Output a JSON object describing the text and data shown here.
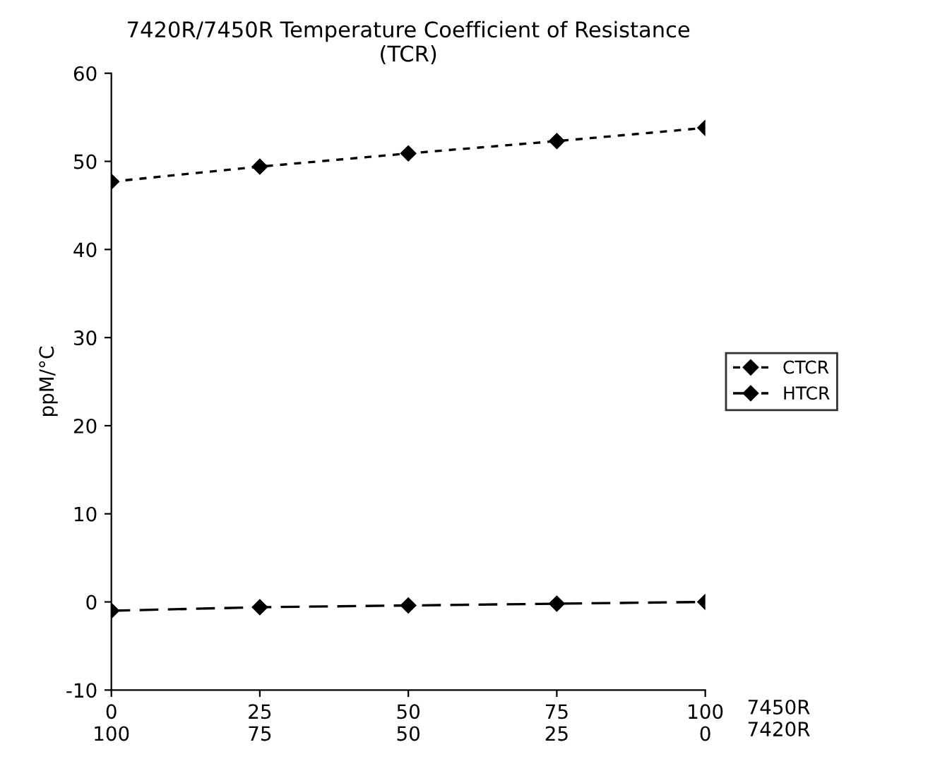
{
  "chart_data": {
    "type": "line",
    "title": "7420R/7450R Temperature Coefficient of Resistance\n(TCR)",
    "ylabel": "ppM/°C",
    "xlabel": "7450R\n7420R",
    "categories": [
      "0\n100",
      "25\n75",
      "50\n50",
      "75\n25",
      "100\n0"
    ],
    "series": [
      {
        "name": "CTCR",
        "color": "#000000",
        "line_style": "dotted",
        "values": [
          47.7,
          49.4,
          50.9,
          52.3,
          53.8
        ]
      },
      {
        "name": "HTCR",
        "color": "#000000",
        "line_style": "dashed",
        "values": [
          -1.0,
          -0.6,
          -0.4,
          -0.2,
          0.0
        ]
      }
    ],
    "ylim": [
      -10,
      60
    ],
    "yticks": [
      -10,
      0,
      10,
      20,
      30,
      40,
      50,
      60
    ],
    "marker": "diamond",
    "grid": false,
    "legend": "right"
  }
}
